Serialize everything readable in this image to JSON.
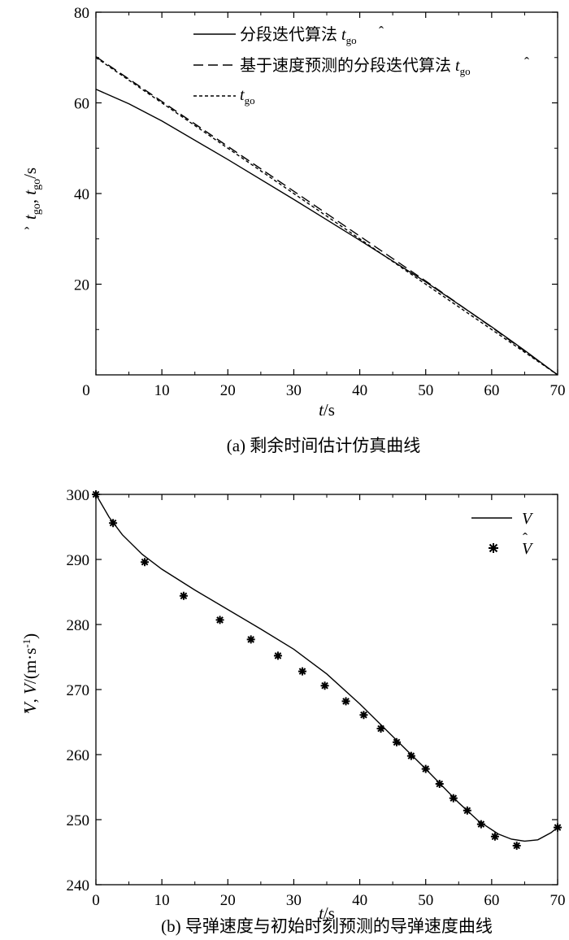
{
  "chart_data": [
    {
      "type": "line",
      "caption": "(a) 剩余时间估计仿真曲线",
      "xlabel": {
        "var": "t",
        "unit": "/s"
      },
      "ylabel": {
        "parts": [
          "t",
          "go",
          ", ",
          "t",
          "go",
          "/s"
        ]
      },
      "xlim": [
        0,
        70
      ],
      "ylim": [
        0,
        80
      ],
      "xticks": [
        "0",
        "10",
        "20",
        "30",
        "40",
        "50",
        "60",
        "70"
      ],
      "xtick_values": [
        0,
        10,
        20,
        30,
        40,
        50,
        60,
        70
      ],
      "yticks": [
        "20",
        "40",
        "60",
        "80"
      ],
      "ytick_values": [
        20,
        40,
        60,
        80
      ],
      "series": [
        {
          "name": "分段迭代算法",
          "name_symbol": "t",
          "name_sub": "go",
          "style": "solid",
          "points": [
            [
              0,
              63
            ],
            [
              5,
              59.8
            ],
            [
              10,
              56
            ],
            [
              20,
              47.5
            ],
            [
              30,
              38.7
            ],
            [
              40,
              29.7
            ],
            [
              50,
              20.5
            ],
            [
              60,
              10.6
            ],
            [
              65,
              5.4
            ],
            [
              70,
              0
            ]
          ]
        },
        {
          "name": "基于速度预测的分段迭代算法",
          "name_symbol": "t",
          "name_sub": "go",
          "style": "longdash",
          "points": [
            [
              0,
              70.2
            ],
            [
              10,
              60.3
            ],
            [
              20,
              50.4
            ],
            [
              30,
              40.5
            ],
            [
              40,
              30.6
            ],
            [
              50,
              20.7
            ],
            [
              60,
              10.5
            ],
            [
              70,
              0
            ]
          ]
        },
        {
          "name": "",
          "name_symbol": "t",
          "name_sub": "go",
          "style": "shortdash",
          "points": [
            [
              0,
              70
            ],
            [
              70,
              0
            ]
          ]
        }
      ]
    },
    {
      "type": "line",
      "caption": "(b) 导弹速度与初始时刻预测的导弹速度曲线",
      "xlabel": {
        "var": "t",
        "unit": "/s"
      },
      "ylabel": {
        "parts": [
          "V",
          ", ",
          "V",
          "/(m·s",
          "-1",
          ")"
        ]
      },
      "xlim": [
        0,
        70
      ],
      "ylim": [
        240,
        300
      ],
      "xticks": [
        "0",
        "10",
        "20",
        "30",
        "40",
        "50",
        "60",
        "70"
      ],
      "xtick_values": [
        0,
        10,
        20,
        30,
        40,
        50,
        60,
        70
      ],
      "yticks": [
        "240",
        "250",
        "260",
        "270",
        "280",
        "290",
        "300"
      ],
      "ytick_values": [
        240,
        250,
        260,
        270,
        280,
        290,
        300
      ],
      "series": [
        {
          "name": "V",
          "style": "solid",
          "points": [
            [
              0,
              300
            ],
            [
              2,
              296.5
            ],
            [
              4,
              293.8
            ],
            [
              7,
              290.8
            ],
            [
              10,
              288.5
            ],
            [
              15,
              285.3
            ],
            [
              20,
              282.3
            ],
            [
              25,
              279.3
            ],
            [
              30,
              276.2
            ],
            [
              35,
              272.4
            ],
            [
              40,
              267.8
            ],
            [
              45,
              262.8
            ],
            [
              50,
              257.8
            ],
            [
              55,
              252.6
            ],
            [
              58,
              249.8
            ],
            [
              61,
              247.8
            ],
            [
              63,
              247.0
            ],
            [
              65,
              246.7
            ],
            [
              67,
              246.9
            ],
            [
              69,
              248.0
            ],
            [
              70,
              248.8
            ]
          ]
        },
        {
          "name": "V",
          "name_hat": true,
          "style": "star",
          "points": [
            [
              0,
              300
            ],
            [
              2.6,
              295.6
            ],
            [
              7.4,
              289.6
            ],
            [
              13.3,
              284.4
            ],
            [
              18.8,
              280.7
            ],
            [
              23.5,
              277.7
            ],
            [
              27.6,
              275.2
            ],
            [
              31.3,
              272.8
            ],
            [
              34.7,
              270.6
            ],
            [
              37.9,
              268.2
            ],
            [
              40.6,
              266.1
            ],
            [
              43.2,
              264.0
            ],
            [
              45.6,
              261.9
            ],
            [
              47.8,
              259.8
            ],
            [
              50.0,
              257.8
            ],
            [
              52.1,
              255.5
            ],
            [
              54.2,
              253.3
            ],
            [
              56.3,
              251.4
            ],
            [
              58.4,
              249.3
            ],
            [
              60.5,
              247.4
            ],
            [
              63.8,
              246.0
            ],
            [
              70,
              248.8
            ]
          ]
        }
      ]
    }
  ]
}
